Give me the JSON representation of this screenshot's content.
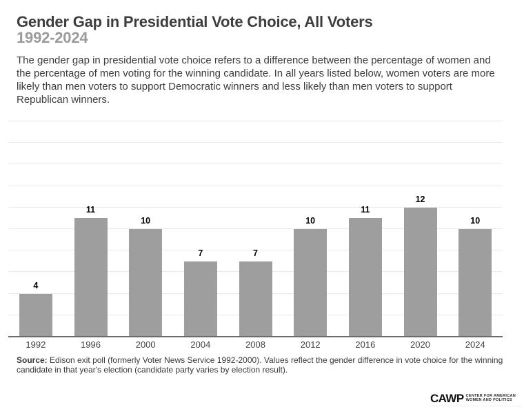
{
  "page": {
    "title": "Gender Gap in Presidential Vote Choice, All Voters",
    "subtitle": "1992-2024",
    "description": "The gender gap in presidential vote choice refers to a difference between the percentage of women and the percentage of men voting for the winning candidate. In all years listed below, women voters are more likely than men voters to support Democratic winners and less likely than men voters to support Republican winners."
  },
  "chart_data": {
    "type": "bar",
    "title": "Gender Gap in Presidential Vote Choice, All Voters",
    "subtitle": "1992-2024",
    "categories": [
      "1992",
      "1996",
      "2000",
      "2004",
      "2008",
      "2012",
      "2016",
      "2020",
      "2024"
    ],
    "values": [
      4,
      11,
      10,
      7,
      7,
      10,
      11,
      12,
      10
    ],
    "xlabel": "",
    "ylabel": "",
    "ylim": [
      0,
      20
    ],
    "gridline_step": 2,
    "grid": true,
    "legend": false,
    "value_labels_shown": true,
    "bar_color": "#9e9e9e",
    "value_label_color": "#000000",
    "gridline_color": "#e9e9e9",
    "axis_line_color": "#6b6b6b"
  },
  "footer": {
    "source_bold": "Source:",
    "source_rest": "Edison exit poll (formerly Voter News Service 1992-2000). Values reflect the gender difference in vote choice for the winning candidate in that year's election (candidate party varies by election result).",
    "logo": {
      "acronym": "CAWP",
      "line1": "CENTER FOR AMERICAN",
      "line2": "WOMEN AND POLITICS"
    }
  },
  "colors": {
    "title": "#3e3e3e",
    "subtitle": "#9b9b9b",
    "body_text": "#3c3c3c",
    "background": "#ffffff"
  }
}
